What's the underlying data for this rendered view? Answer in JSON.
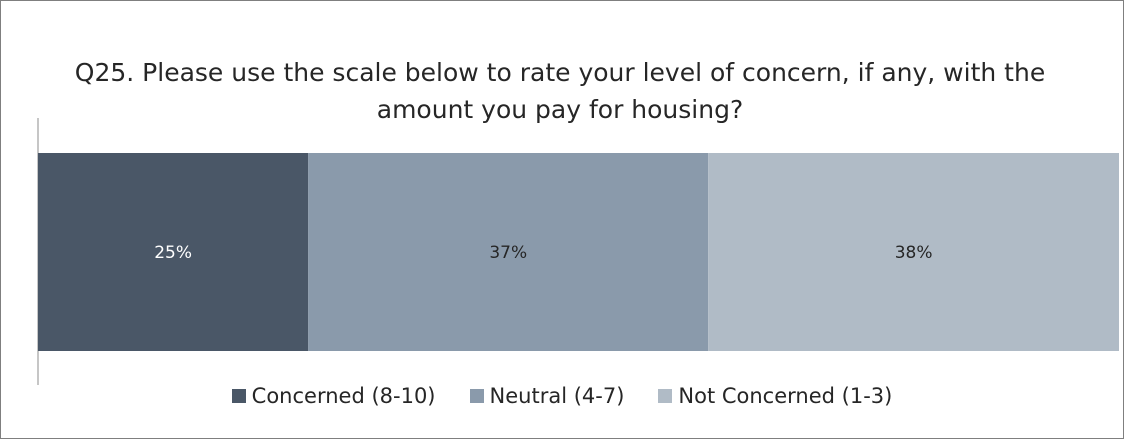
{
  "chart_data": {
    "type": "bar",
    "orientation": "horizontal-stacked-100",
    "title": "Q25. Please use the scale below to rate your level of concern, if any, with the amount you pay for housing?",
    "series": [
      {
        "name": "Concerned (8-10)",
        "values": [
          25
        ],
        "label": "25%",
        "color": "#4a5767",
        "label_color": "#ffffff"
      },
      {
        "name": "Neutral (4-7)",
        "values": [
          37
        ],
        "label": "37%",
        "color": "#8a9aab",
        "label_color": "#262626"
      },
      {
        "name": "Not Concerned (1-3)",
        "values": [
          38
        ],
        "label": "38%",
        "color": "#b0bbc6",
        "label_color": "#262626"
      }
    ],
    "xlim": [
      0,
      100
    ],
    "legend_position": "bottom",
    "grid": false
  }
}
